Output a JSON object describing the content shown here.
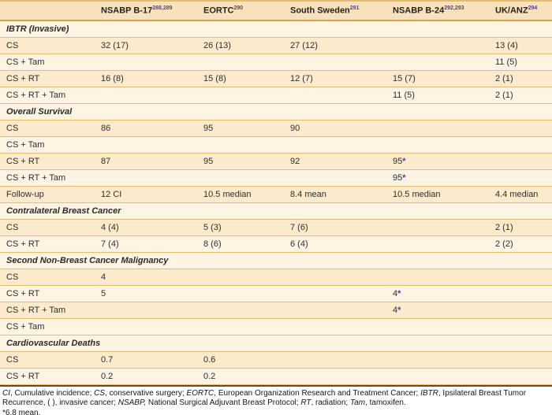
{
  "colors": {
    "header_bg": "#F9E2BB",
    "row_peach": "#FBEACC",
    "row_light": "#FDF4E3",
    "row_border": "#E5BC72",
    "header_border": "#D8A14B",
    "text": "#2F2D2B",
    "superscript": "#5C3A9B",
    "divider": "#4F4F51"
  },
  "table": {
    "columns": [
      {
        "label": "",
        "sup": ""
      },
      {
        "label": "NSABP B-17",
        "sup": "288,289"
      },
      {
        "label": "EORTC",
        "sup": "290"
      },
      {
        "label": "South Sweden",
        "sup": "291"
      },
      {
        "label": "NSABP B-24",
        "sup": "292,293"
      },
      {
        "label": "UK/ANZ",
        "sup": "294"
      }
    ],
    "sections": [
      {
        "title": "IBTR (Invasive)",
        "rows": [
          {
            "label": "CS",
            "values": [
              "32 (17)",
              "26 (13)",
              "27 (12)",
              "",
              "13 (4)"
            ]
          },
          {
            "label": "CS + Tam",
            "values": [
              "",
              "",
              "",
              "",
              "11 (5)"
            ]
          },
          {
            "label": "CS + RT",
            "values": [
              "16 (8)",
              "15 (8)",
              "12 (7)",
              "15 (7)",
              "2 (1)"
            ]
          },
          {
            "label": "CS + RT + Tam",
            "values": [
              "",
              "",
              "",
              "11 (5)",
              "2 (1)"
            ]
          }
        ]
      },
      {
        "title": "Overall Survival",
        "rows": [
          {
            "label": "CS",
            "values": [
              "86",
              "95",
              "90",
              "",
              ""
            ]
          },
          {
            "label": "CS + Tam",
            "values": [
              "",
              "",
              "",
              "",
              ""
            ]
          },
          {
            "label": "CS + RT",
            "values": [
              "87",
              "95",
              "92",
              "95*",
              ""
            ]
          },
          {
            "label": "CS + RT + Tam",
            "values": [
              "",
              "",
              "",
              "95*",
              ""
            ]
          },
          {
            "label": "Follow-up",
            "values": [
              "12 CI",
              "10.5 median",
              "8.4 mean",
              "10.5 median",
              "4.4 median"
            ]
          }
        ]
      },
      {
        "title": "Contralateral Breast Cancer",
        "rows": [
          {
            "label": "CS",
            "values": [
              "4 (4)",
              "5 (3)",
              "7 (6)",
              "",
              "2 (1)"
            ]
          },
          {
            "label": "CS + RT",
            "values": [
              "7 (4)",
              "8 (6)",
              "6 (4)",
              "",
              "2 (2)"
            ]
          }
        ]
      },
      {
        "title": "Second Non-Breast Cancer Malignancy",
        "rows": [
          {
            "label": "CS",
            "values": [
              "4",
              "",
              "",
              "",
              ""
            ]
          },
          {
            "label": "CS + RT",
            "values": [
              "5",
              "",
              "",
              "4*",
              ""
            ]
          },
          {
            "label": "CS + RT + Tam",
            "values": [
              "",
              "",
              "",
              "4*",
              ""
            ]
          },
          {
            "label": "CS + Tam",
            "values": [
              "",
              "",
              "",
              "",
              ""
            ]
          }
        ]
      },
      {
        "title": "Cardiovascular Deaths",
        "rows": [
          {
            "label": "CS",
            "values": [
              "0.7",
              "0.6",
              "",
              "",
              ""
            ]
          },
          {
            "label": "CS + RT",
            "values": [
              "0.2",
              "0.2",
              "",
              "",
              ""
            ]
          }
        ]
      }
    ]
  },
  "footnotes": {
    "abbreviations": [
      {
        "text": "CI",
        "italic": true
      },
      {
        "text": ", Cumulative incidence; ",
        "italic": false
      },
      {
        "text": "CS",
        "italic": true
      },
      {
        "text": ", conservative surgery; ",
        "italic": false
      },
      {
        "text": "EORTC",
        "italic": true
      },
      {
        "text": ", European Organization Research and Treatment Cancer; ",
        "italic": false
      },
      {
        "text": "IBTR",
        "italic": true
      },
      {
        "text": ", Ipsilateral Breast Tumor Recurrence, ( ), invasive cancer; ",
        "italic": false
      },
      {
        "text": "NSABP,",
        "italic": true
      },
      {
        "text": " National Surgical Adjuvant Breast Protocol; ",
        "italic": false
      },
      {
        "text": "RT",
        "italic": true
      },
      {
        "text": ", radiation; ",
        "italic": false
      },
      {
        "text": "Tam",
        "italic": true
      },
      {
        "text": ", tamoxifen.",
        "italic": false
      }
    ],
    "asterisk_note": "*6.8 mean."
  }
}
